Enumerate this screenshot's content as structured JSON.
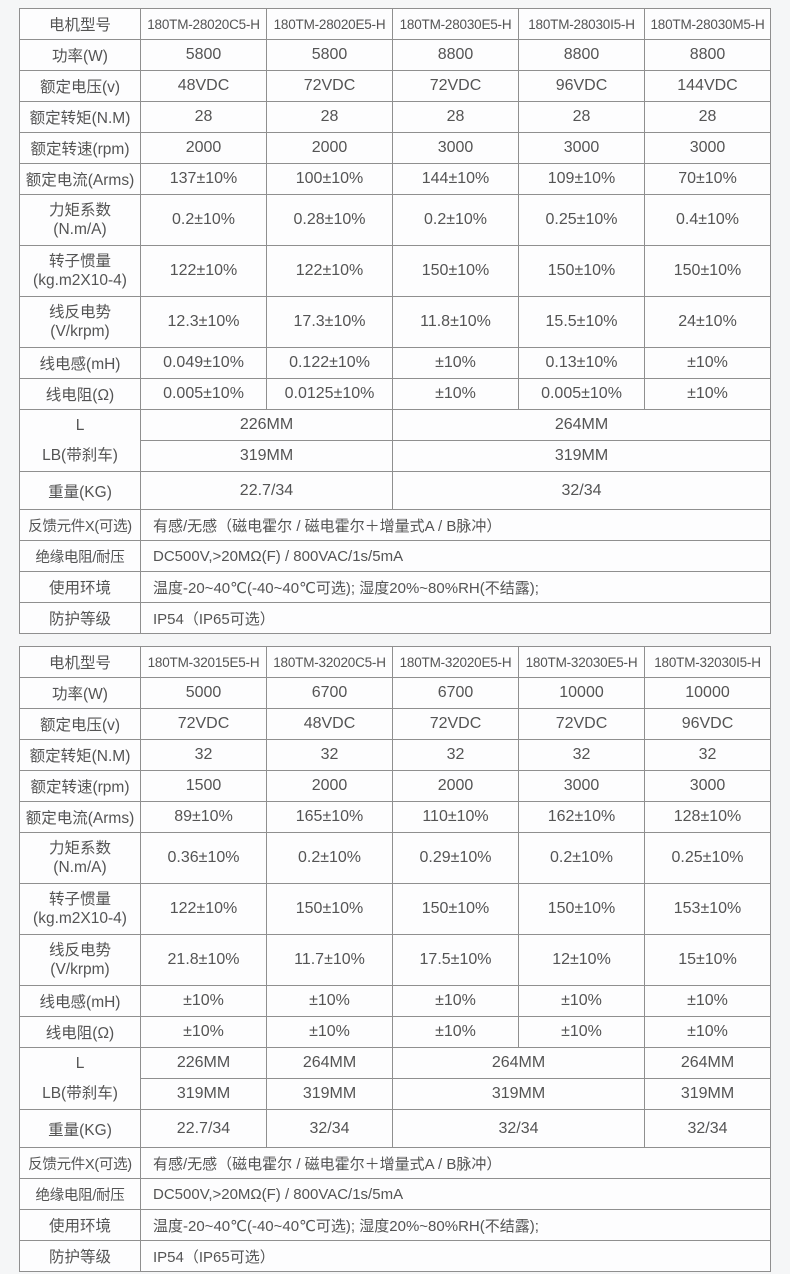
{
  "page": {
    "background_color": "#f5f6f7",
    "cell_background_color": "#fdfdfe",
    "border_color": "#8f8f8f",
    "text_color": "#545454"
  },
  "tables": [
    {
      "model_header": {
        "label": "电机型号",
        "models": [
          "180TM-28020C5-H",
          "180TM-28020E5-H",
          "180TM-28030E5-H",
          "180TM-28030I5-H",
          "180TM-28030M5-H"
        ]
      },
      "spec_rows": [
        {
          "label": "功率(W)",
          "values": [
            "5800",
            "5800",
            "8800",
            "8800",
            "8800"
          ]
        },
        {
          "label": "额定电压(v)",
          "values": [
            "48VDC",
            "72VDC",
            "72VDC",
            "96VDC",
            "144VDC"
          ]
        },
        {
          "label": "额定转矩(N.M)",
          "values": [
            "28",
            "28",
            "28",
            "28",
            "28"
          ]
        },
        {
          "label": "额定转速(rpm)",
          "values": [
            "2000",
            "2000",
            "3000",
            "3000",
            "3000"
          ]
        },
        {
          "label": "额定电流(Arms)",
          "values": [
            "137±10%",
            "100±10%",
            "144±10%",
            "109±10%",
            "70±10%"
          ]
        },
        {
          "label": "力矩系数",
          "sublabel": "(N.m/A)",
          "values": [
            "0.2±10%",
            "0.28±10%",
            "0.2±10%",
            "0.25±10%",
            "0.4±10%"
          ]
        },
        {
          "label": "转子惯量",
          "sublabel": "(kg.m2X10-4)",
          "values": [
            "122±10%",
            "122±10%",
            "150±10%",
            "150±10%",
            "150±10%"
          ]
        },
        {
          "label": "线反电势",
          "sublabel": "(V/krpm)",
          "values": [
            "12.3±10%",
            "17.3±10%",
            "11.8±10%",
            "15.5±10%",
            "24±10%"
          ]
        },
        {
          "label": "线电感(mH)",
          "values": [
            "0.049±10%",
            "0.122±10%",
            "±10%",
            "0.13±10%",
            "±10%"
          ]
        },
        {
          "label": "线电阻(Ω)",
          "values": [
            "0.005±10%",
            "0.0125±10%",
            "±10%",
            "0.005±10%",
            "±10%"
          ]
        }
      ],
      "dims": {
        "l_label": "L",
        "lb_label": "LB(带刹车)",
        "weight_label": "重量(KG)",
        "l_values": [
          "226MM",
          "264MM"
        ],
        "lb_values": [
          "319MM",
          "319MM"
        ],
        "weight_values": [
          "22.7/34",
          "32/34"
        ]
      },
      "notes": [
        {
          "label": "反馈元件X(可选)",
          "value": "有感/无感（磁电霍尔 / 磁电霍尔＋增量式A / B脉冲）"
        },
        {
          "label": "绝缘电阻/耐压",
          "value": "DC500V,>20MΩ(F) / 800VAC/1s/5mA"
        },
        {
          "label": "使用环境",
          "value": "温度-20~40℃(-40~40℃可选); 湿度20%~80%RH(不结露);"
        },
        {
          "label": "防护等级",
          "value": "IP54（IP65可选）"
        }
      ]
    },
    {
      "model_header": {
        "label": "电机型号",
        "models": [
          "180TM-32015E5-H",
          "180TM-32020C5-H",
          "180TM-32020E5-H",
          "180TM-32030E5-H",
          "180TM-32030I5-H"
        ]
      },
      "spec_rows": [
        {
          "label": "功率(W)",
          "values": [
            "5000",
            "6700",
            "6700",
            "10000",
            "10000"
          ]
        },
        {
          "label": "额定电压(v)",
          "values": [
            "72VDC",
            "48VDC",
            "72VDC",
            "72VDC",
            "96VDC"
          ]
        },
        {
          "label": "额定转矩(N.M)",
          "values": [
            "32",
            "32",
            "32",
            "32",
            "32"
          ]
        },
        {
          "label": "额定转速(rpm)",
          "values": [
            "1500",
            "2000",
            "2000",
            "3000",
            "3000"
          ]
        },
        {
          "label": "额定电流(Arms)",
          "values": [
            "89±10%",
            "165±10%",
            "110±10%",
            "162±10%",
            "128±10%"
          ]
        },
        {
          "label": "力矩系数",
          "sublabel": "(N.m/A)",
          "values": [
            "0.36±10%",
            "0.2±10%",
            "0.29±10%",
            "0.2±10%",
            "0.25±10%"
          ]
        },
        {
          "label": "转子惯量",
          "sublabel": "(kg.m2X10-4)",
          "values": [
            "122±10%",
            "150±10%",
            "150±10%",
            "150±10%",
            "153±10%"
          ]
        },
        {
          "label": "线反电势",
          "sublabel": "(V/krpm)",
          "values": [
            "21.8±10%",
            "11.7±10%",
            "17.5±10%",
            "12±10%",
            "15±10%"
          ]
        },
        {
          "label": "线电感(mH)",
          "values": [
            "±10%",
            "±10%",
            "±10%",
            "±10%",
            "±10%"
          ]
        },
        {
          "label": "线电阻(Ω)",
          "values": [
            "±10%",
            "±10%",
            "±10%",
            "±10%",
            "±10%"
          ]
        }
      ],
      "dims": {
        "l_label": "L",
        "lb_label": "LB(带刹车)",
        "weight_label": "重量(KG)",
        "l_values": [
          "226MM",
          "264MM",
          "264MM",
          "264MM"
        ],
        "lb_values": [
          "319MM",
          "319MM",
          "319MM",
          "319MM"
        ],
        "weight_values": [
          "22.7/34",
          "32/34",
          "32/34",
          "32/34"
        ]
      },
      "notes": [
        {
          "label": "反馈元件X(可选)",
          "value": "有感/无感（磁电霍尔 / 磁电霍尔＋增量式A / B脉冲）"
        },
        {
          "label": "绝缘电阻/耐压",
          "value": "DC500V,>20MΩ(F) / 800VAC/1s/5mA"
        },
        {
          "label": "使用环境",
          "value": "温度-20~40℃(-40~40℃可选); 湿度20%~80%RH(不结露);"
        },
        {
          "label": "防护等级",
          "value": "IP54（IP65可选）"
        }
      ]
    }
  ]
}
